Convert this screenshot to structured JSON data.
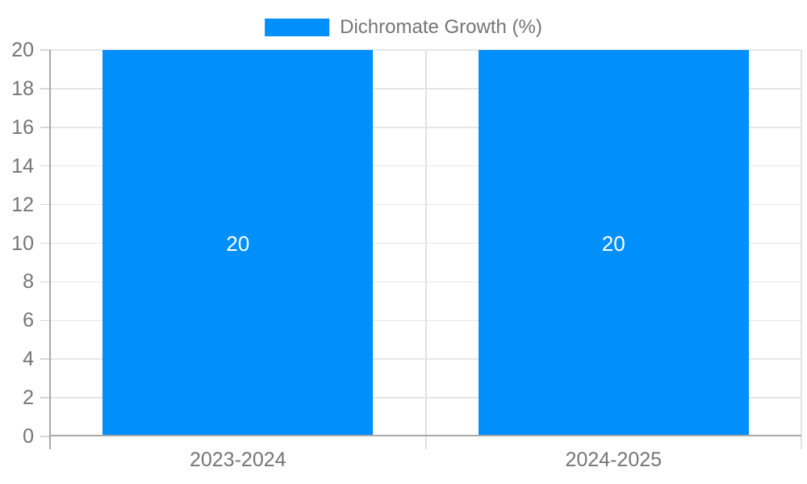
{
  "legend": {
    "label": "Dichromate Growth (%)"
  },
  "colors": {
    "bar": "#008FFB",
    "grid": "#E6E6E6",
    "tick": "#D6D6D6",
    "boundary": "#E2E2E2",
    "axis_line": "#A9A9A9",
    "text": "#757575",
    "bar_label": "#FFFFFF",
    "background": "#FFFFFF"
  },
  "chart_data": {
    "type": "bar",
    "title": "",
    "xlabel": "",
    "ylabel": "",
    "categories": [
      "2023-2024",
      "2024-2025"
    ],
    "series": [
      {
        "name": "Dichromate Growth (%)",
        "values": [
          20,
          20
        ]
      }
    ],
    "bar_value_labels": [
      "20",
      "20"
    ],
    "ylim": [
      0,
      20
    ],
    "yticks": [
      0,
      2,
      4,
      6,
      8,
      10,
      12,
      14,
      16,
      18,
      20
    ],
    "grid": true,
    "legend_position": "top-center"
  }
}
